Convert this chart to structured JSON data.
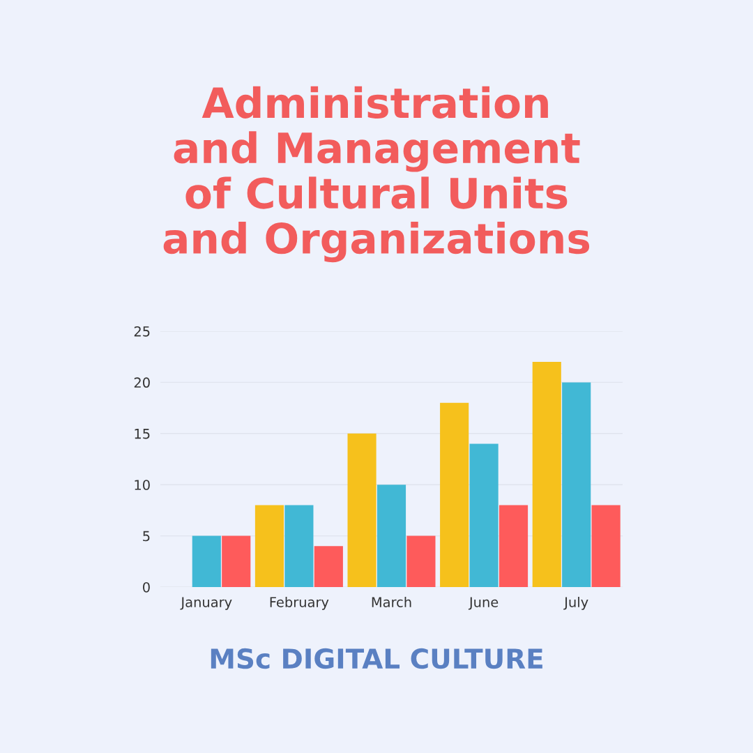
{
  "chart_data": {
    "type": "bar",
    "title": "Administration\nand Management\nof Cultural Units\nand Organizations",
    "categories": [
      "January",
      "February",
      "March",
      "June",
      "July"
    ],
    "series": [
      {
        "color": "#f6c11c",
        "values": [
          0,
          8,
          15,
          18,
          22
        ]
      },
      {
        "color": "#41b8d5",
        "values": [
          5,
          8,
          10,
          14,
          20
        ]
      },
      {
        "color": "#fe5b5b",
        "values": [
          5,
          4,
          5,
          8,
          8
        ]
      }
    ],
    "ylim": [
      0,
      25
    ],
    "yticks": [
      0,
      5,
      10,
      15,
      20,
      25
    ],
    "grid": "y",
    "annotations": [
      "MSc DIGITAL CULTURE"
    ]
  }
}
